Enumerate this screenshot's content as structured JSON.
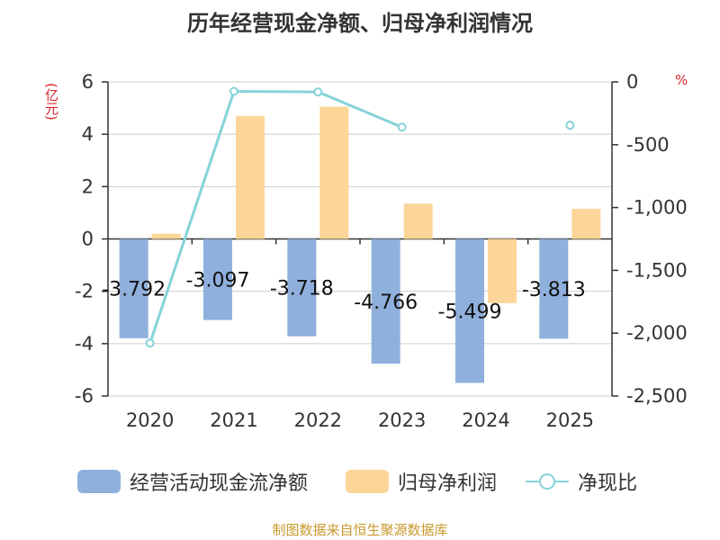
{
  "chart_data": {
    "type": "bar",
    "title": "历年经营现金净额、归母净利润情况",
    "categories": [
      "2020",
      "2021",
      "2022",
      "2023",
      "2024",
      "2025"
    ],
    "left_axis": {
      "unit": "(亿元)",
      "ylim": [
        -6,
        6
      ],
      "ticks": [
        6,
        4,
        2,
        0,
        -2,
        -4,
        -6
      ],
      "tick_labels": [
        "6",
        "4",
        "2",
        "0",
        "-2",
        "-4",
        "-6"
      ]
    },
    "right_axis": {
      "unit": "%",
      "ylim": [
        -2500,
        0
      ],
      "ticks": [
        0,
        -500,
        -1000,
        -1500,
        -2000,
        -2500
      ],
      "tick_labels": [
        "0",
        "-500",
        "-1,000",
        "-1,500",
        "-2,000",
        "-2,500"
      ]
    },
    "series": [
      {
        "name": "经营活动现金流净额",
        "type": "bar",
        "axis": "left",
        "color": "#8fb0dc",
        "values": [
          -3.792,
          -3.097,
          -3.718,
          -4.766,
          -5.499,
          -3.813
        ],
        "data_labels": [
          "-3.792",
          "-3.097",
          "-3.718",
          "-4.766",
          "-5.499",
          "-3.813"
        ]
      },
      {
        "name": "归母净利润",
        "type": "bar",
        "axis": "left",
        "color": "#fcd698",
        "values": [
          0.2,
          4.7,
          5.05,
          1.35,
          -2.45,
          1.15
        ]
      },
      {
        "name": "净现比",
        "type": "line",
        "axis": "right",
        "color": "#86d3d8",
        "values": [
          -2080,
          -75,
          -80,
          -360,
          null,
          -345
        ]
      }
    ],
    "grid": true,
    "legend_position": "bottom"
  },
  "legend": [
    "经营活动现金流净额",
    "归母净利润",
    "净现比"
  ],
  "source": "制图数据来自恒生聚源数据库"
}
